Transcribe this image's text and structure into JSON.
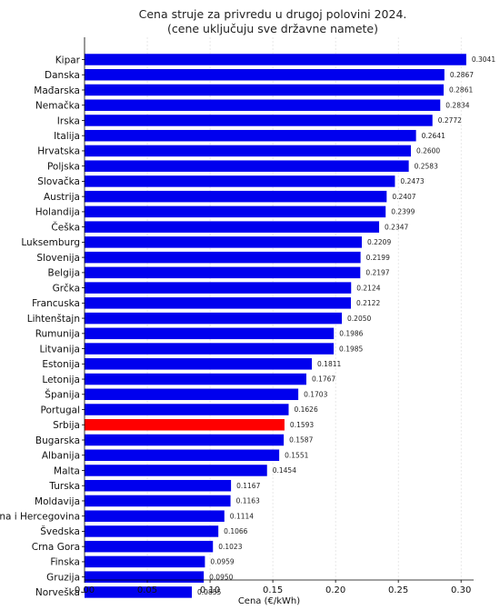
{
  "chart_data": {
    "type": "bar",
    "orientation": "horizontal",
    "title": "Cena struje za privredu u drugoj polovini 2024.",
    "subtitle": "(cene uključuju sve državne namete)",
    "xlabel": "Cena (€/kWh)",
    "ylabel": "",
    "xlim": [
      0,
      0.31
    ],
    "xticks": [
      "0.00",
      "0.05",
      "0.10",
      "0.15",
      "0.20",
      "0.25",
      "0.30"
    ],
    "grid": true,
    "categories": [
      "Kipar",
      "Danska",
      "Mađarska",
      "Nemačka",
      "Irska",
      "Italija",
      "Hrvatska",
      "Poljska",
      "Slovačka",
      "Austrija",
      "Holandija",
      "Češka",
      "Luksemburg",
      "Slovenija",
      "Belgija",
      "Grčka",
      "Francuska",
      "Lihtenštajn",
      "Rumunija",
      "Litvanija",
      "Estonija",
      "Letonija",
      "Španija",
      "Portugal",
      "Srbija",
      "Bugarska",
      "Albanija",
      "Malta",
      "Turska",
      "Moldavija",
      "Bosna i Hercegovina",
      "Švedska",
      "Crna Gora",
      "Finska",
      "Gruzija",
      "Norveška"
    ],
    "values": [
      0.3041,
      0.2867,
      0.2861,
      0.2834,
      0.2772,
      0.2641,
      0.26,
      0.2583,
      0.2473,
      0.2407,
      0.2399,
      0.2347,
      0.2209,
      0.2199,
      0.2197,
      0.2124,
      0.2122,
      0.205,
      0.1986,
      0.1985,
      0.1811,
      0.1767,
      0.1703,
      0.1626,
      0.1593,
      0.1587,
      0.1551,
      0.1454,
      0.1167,
      0.1163,
      0.1114,
      0.1066,
      0.1023,
      0.0959,
      0.095,
      0.0855
    ],
    "value_labels": [
      "0.3041",
      "0.2867",
      "0.2861",
      "0.2834",
      "0.2772",
      "0.2641",
      "0.2600",
      "0.2583",
      "0.2473",
      "0.2407",
      "0.2399",
      "0.2347",
      "0.2209",
      "0.2199",
      "0.2197",
      "0.2124",
      "0.2122",
      "0.2050",
      "0.1986",
      "0.1985",
      "0.1811",
      "0.1767",
      "0.1703",
      "0.1626",
      "0.1593",
      "0.1587",
      "0.1551",
      "0.1454",
      "0.1167",
      "0.1163",
      "0.1114",
      "0.1066",
      "0.1023",
      "0.0959",
      "0.0950",
      "0.0855"
    ],
    "colors": {
      "default": "#0000ee",
      "highlight": "#ff0000",
      "highlight_category": "Srbija"
    }
  }
}
